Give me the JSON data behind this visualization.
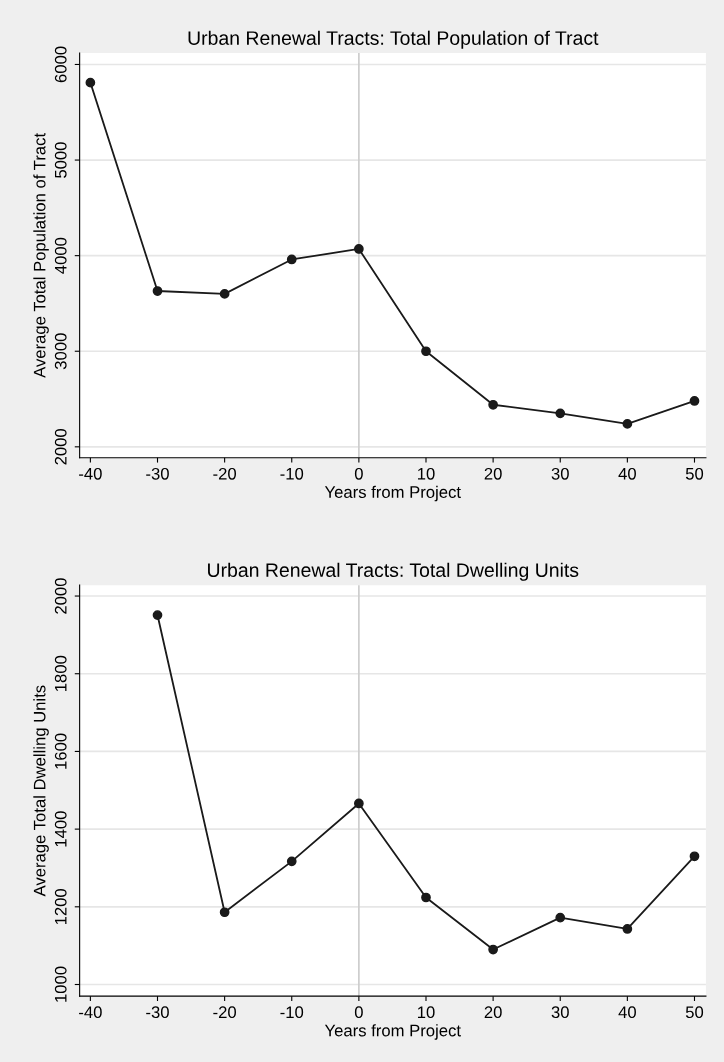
{
  "chart_data": [
    {
      "type": "line",
      "title": "Urban Renewal Tracts: Total Population of Tract",
      "xlabel": "Years from Project",
      "ylabel": "Average Total Population of Tract",
      "x": [
        -40,
        -30,
        -20,
        -10,
        0,
        10,
        20,
        30,
        40,
        50
      ],
      "series": [
        {
          "color": "#1a1a1a",
          "values": [
            5810,
            3630,
            3600,
            3960,
            4070,
            3000,
            2440,
            2350,
            2240,
            2480
          ]
        }
      ],
      "xlim": [
        -41.6,
        51.7
      ],
      "xticks": [
        -40,
        -30,
        -20,
        -10,
        0,
        10,
        20,
        30,
        40,
        50
      ],
      "ylim": [
        1886,
        6119
      ],
      "yticks": [
        2000,
        3000,
        4000,
        5000,
        6000
      ],
      "grid": "y",
      "marker": "circle",
      "line_style": "solid",
      "ref_lines": [
        {
          "axis": "x",
          "value": 0,
          "color": "#cccccc"
        }
      ]
    },
    {
      "type": "line",
      "title": "Urban Renewal Tracts: Total Dwelling Units",
      "xlabel": "Years from Project",
      "ylabel": "Average Total Dwelling Units",
      "x": [
        -30,
        -20,
        -10,
        0,
        10,
        20,
        30,
        40,
        50
      ],
      "series": [
        {
          "color": "#1a1a1a",
          "values": [
            1951,
            1186,
            1317,
            1466,
            1224,
            1090,
            1172,
            1143,
            1330
          ]
        }
      ],
      "xlim": [
        -41.6,
        51.7
      ],
      "xticks": [
        -40,
        -30,
        -20,
        -10,
        0,
        10,
        20,
        30,
        40,
        50
      ],
      "ylim": [
        970,
        2028
      ],
      "yticks": [
        1000,
        1200,
        1400,
        1600,
        1800,
        2000
      ],
      "grid": "y",
      "marker": "circle",
      "line_style": "solid",
      "ref_lines": [
        {
          "axis": "x",
          "value": 0,
          "color": "#cccccc"
        }
      ]
    }
  ]
}
